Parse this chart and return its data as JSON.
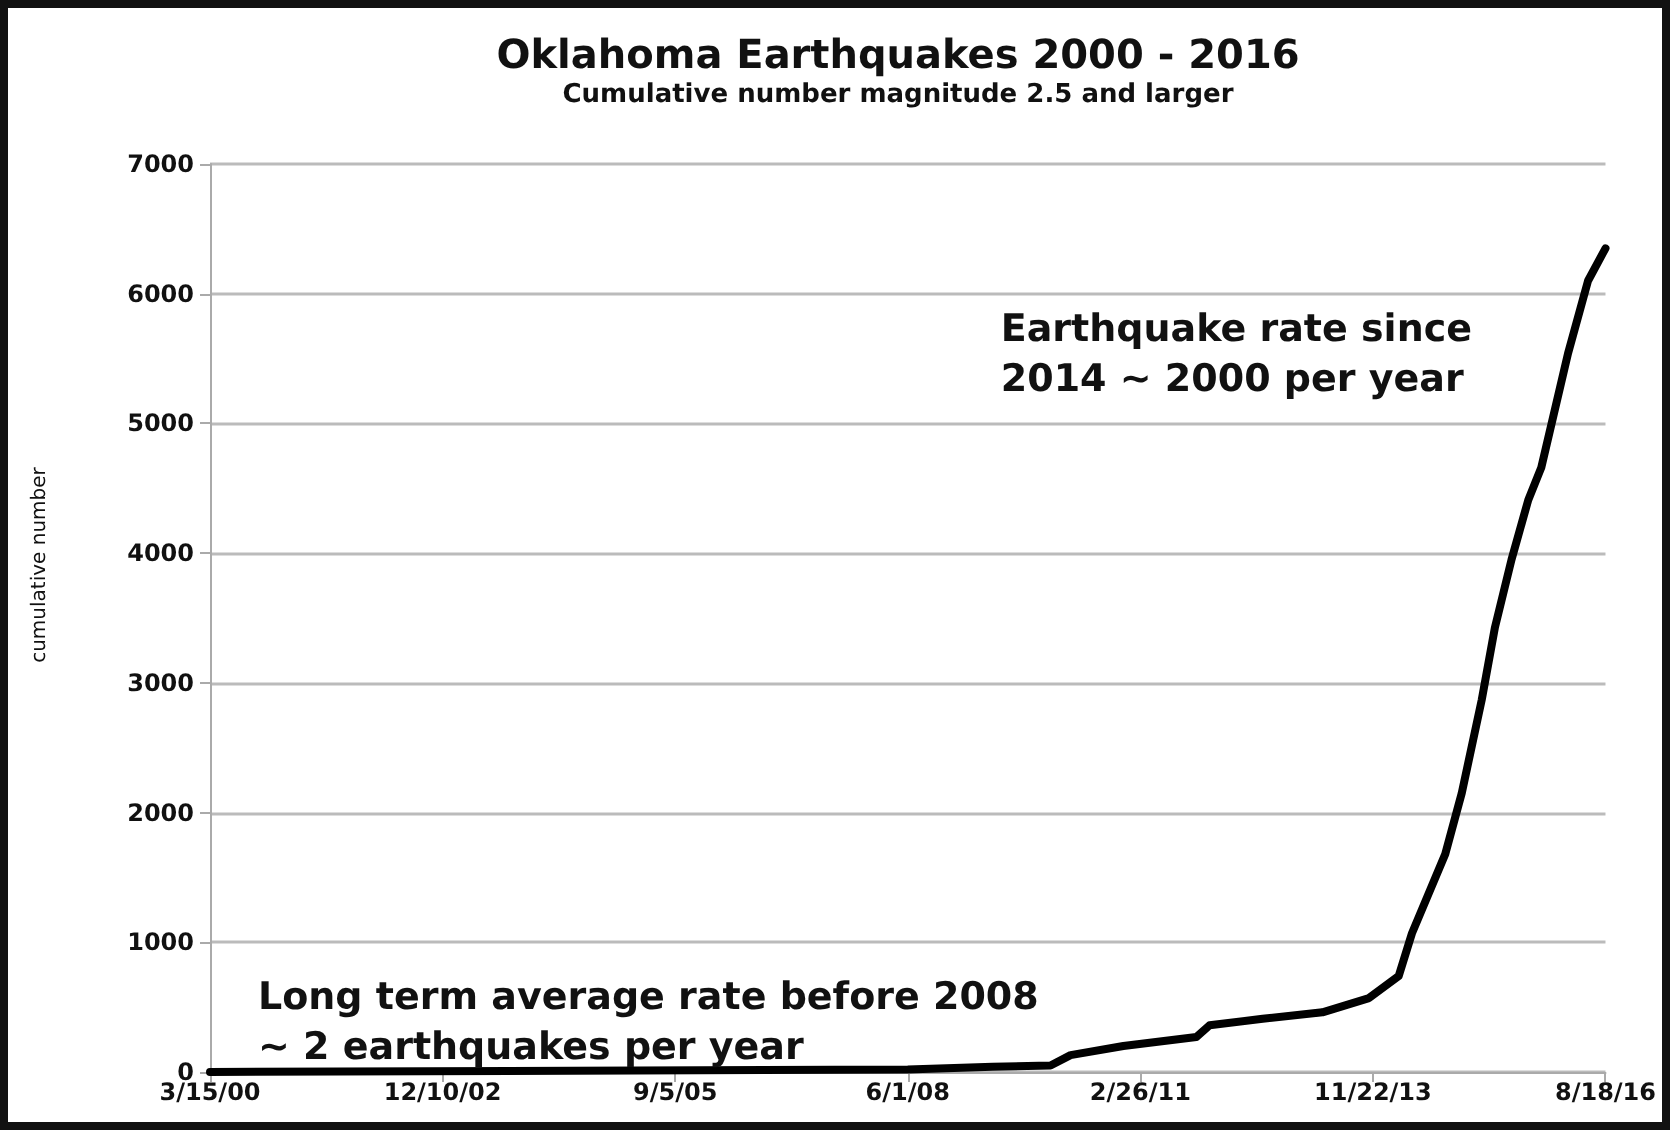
{
  "chart_data": {
    "type": "line",
    "title": "Oklahoma Earthquakes 2000 - 2016",
    "subtitle": "Cumulative number magnitude 2.5 and larger",
    "ylabel": "cumulative number",
    "annotations": [
      "Earthquake rate since\n2014 ~ 2000 per year",
      "Long term average rate before 2008\n~ 2 earthquakes per year"
    ],
    "x": [
      "2000-03-15",
      "2008-06-01",
      "2009-06-01",
      "2010-02-05",
      "2010-05-02",
      "2010-12-15",
      "2011-10-25",
      "2011-12-21",
      "2012-08-05",
      "2013-04-19",
      "2013-11-05",
      "2014-03-13",
      "2014-05-09",
      "2014-09-29",
      "2014-12-09",
      "2015-03-05",
      "2015-05-01",
      "2015-07-11",
      "2015-09-21",
      "2015-11-16",
      "2016-03-10",
      "2016-06-04",
      "2016-08-18"
    ],
    "series": [
      {
        "color": "#000000",
        "values": [
          0,
          20,
          40,
          50,
          130,
          200,
          270,
          360,
          410,
          460,
          570,
          740,
          1070,
          1680,
          2150,
          2870,
          3430,
          3950,
          4410,
          4660,
          5540,
          6100,
          6350
        ]
      }
    ],
    "xlim": [
      "2000-03-15",
      "2016-08-18"
    ],
    "xticks": [
      {
        "value": "2000-03-15",
        "label": "3/15/00"
      },
      {
        "value": "2002-12-10",
        "label": "12/10/02"
      },
      {
        "value": "2005-09-05",
        "label": "9/5/05"
      },
      {
        "value": "2008-06-01",
        "label": "6/1/08"
      },
      {
        "value": "2011-02-26",
        "label": "2/26/11"
      },
      {
        "value": "2013-11-22",
        "label": "11/22/13"
      },
      {
        "value": "2016-08-18",
        "label": "8/18/16"
      }
    ],
    "ylim": [
      0,
      7000
    ],
    "yticks": [
      0,
      1000,
      2000,
      3000,
      4000,
      5000,
      6000,
      7000
    ],
    "grid": "y",
    "marker": "none",
    "line_style": "solid"
  }
}
